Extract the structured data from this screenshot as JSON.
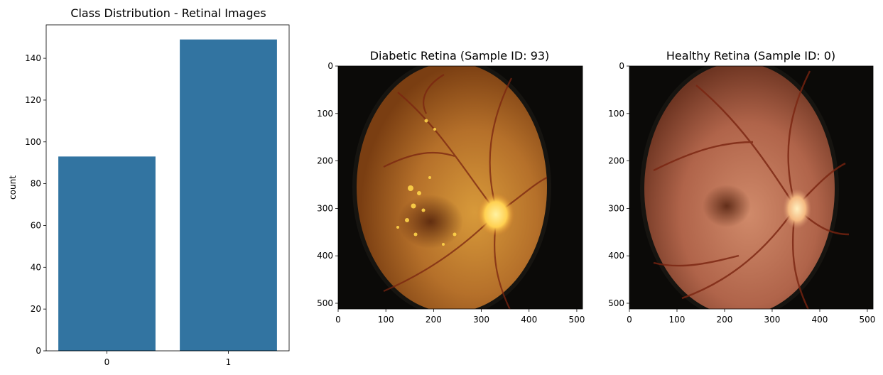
{
  "colors": {
    "bar": "#3274a1",
    "axis": "#000000",
    "background": "#ffffff",
    "fundus_black": "#0b0a08",
    "diabetic_center": "#c8852c",
    "diabetic_edge": "#7a3e12",
    "healthy_center": "#c6795a",
    "healthy_edge": "#6e3522",
    "vessel": "#7a2410",
    "optic_disc": "#ffe070",
    "exudate": "#ffd54a"
  },
  "chart_data": [
    {
      "type": "bar",
      "title": "Class Distribution - Retinal Images",
      "xlabel": "",
      "ylabel": "count",
      "categories": [
        "0",
        "1"
      ],
      "values": [
        93,
        149
      ],
      "ylim": [
        0,
        156
      ],
      "yticks": [
        0,
        20,
        40,
        60,
        80,
        100,
        120,
        140
      ],
      "grid": false
    },
    {
      "type": "image",
      "title": "Diabetic Retina (Sample ID: 93)",
      "content": "diabetic retina fundus photograph",
      "xlim": [
        0,
        512
      ],
      "ylim": [
        512,
        0
      ],
      "xticks": [
        0,
        100,
        200,
        300,
        400,
        500
      ],
      "yticks": [
        0,
        100,
        200,
        300,
        400,
        500
      ]
    },
    {
      "type": "image",
      "title": "Healthy Retina (Sample ID: 0)",
      "content": "healthy retina fundus photograph",
      "xlim": [
        0,
        512
      ],
      "ylim": [
        512,
        0
      ],
      "xticks": [
        0,
        100,
        200,
        300,
        400,
        500
      ],
      "yticks": [
        0,
        100,
        200,
        300,
        400,
        500
      ]
    }
  ]
}
